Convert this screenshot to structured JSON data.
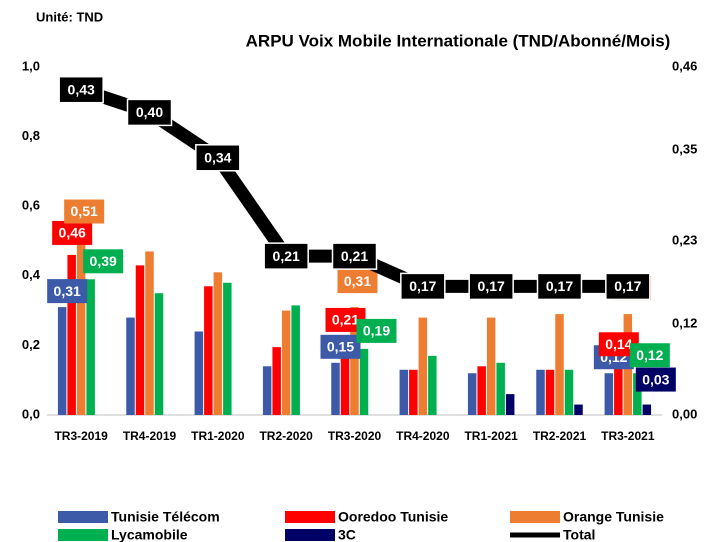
{
  "chart_data": {
    "type": "bar",
    "title": "ARPU Voix Mobile Internationale (TND/Abonné/Mois)",
    "subtitle": "Unité: TND",
    "categories": [
      "TR3-2019",
      "TR4-2019",
      "TR1-2020",
      "TR2-2020",
      "TR3-2020",
      "TR4-2020",
      "TR1-2021",
      "TR2-2021",
      "TR3-2021"
    ],
    "ylim": [
      0,
      1.0
    ],
    "yticks": [
      {
        "value": 0,
        "label": "0,0"
      },
      {
        "value": 0.2,
        "label": "0,2"
      },
      {
        "value": 0.4,
        "label": "0,4"
      },
      {
        "value": 0.6,
        "label": "0,6"
      },
      {
        "value": 0.8,
        "label": "0,8"
      },
      {
        "value": 1.0,
        "label": "1,0"
      }
    ],
    "y2lim": [
      0,
      0.46
    ],
    "y2ticks": [
      {
        "value": 0,
        "label": "0,00"
      },
      {
        "value": 0.12,
        "label": "0,12"
      },
      {
        "value": 0.23,
        "label": "0,23"
      },
      {
        "value": 0.35,
        "label": "0,35"
      },
      {
        "value": 0.46,
        "label": "0,46"
      }
    ],
    "series": [
      {
        "name": "Tunisie Télécom",
        "color": "#3c5aa8",
        "values": [
          0.31,
          0.28,
          0.24,
          0.14,
          0.15,
          0.13,
          0.12,
          0.13,
          0.12
        ],
        "value_labels": [
          "0,31",
          null,
          null,
          null,
          "0,15",
          null,
          null,
          null,
          "0,12"
        ]
      },
      {
        "name": "Ooredoo Tunisie",
        "color": "#ff0000",
        "values": [
          0.46,
          0.43,
          0.37,
          0.195,
          0.21,
          0.13,
          0.14,
          0.13,
          0.14
        ],
        "value_labels": [
          "0,46",
          null,
          null,
          null,
          "0,21",
          null,
          null,
          null,
          "0,14"
        ]
      },
      {
        "name": "Orange Tunisie",
        "color": "#ed7d31",
        "values": [
          0.51,
          0.47,
          0.41,
          0.3,
          0.31,
          0.28,
          0.28,
          0.29,
          0.29
        ],
        "value_labels": [
          "0,51",
          null,
          null,
          null,
          "0,31",
          null,
          null,
          null,
          "0,29"
        ]
      },
      {
        "name": "Lycamobile",
        "color": "#00b050",
        "values": [
          0.39,
          0.35,
          0.38,
          0.315,
          0.19,
          0.17,
          0.15,
          0.13,
          0.12
        ],
        "value_labels": [
          "0,39",
          null,
          null,
          null,
          "0,19",
          null,
          null,
          null,
          "0,12"
        ]
      },
      {
        "name": "3C",
        "color": "#000066",
        "values": [
          null,
          null,
          null,
          null,
          null,
          null,
          0.06,
          0.03,
          0.03
        ],
        "value_labels": [
          null,
          null,
          null,
          null,
          null,
          null,
          null,
          null,
          "0,03"
        ]
      },
      {
        "name": "Total",
        "color": "#000000",
        "type": "line",
        "axis": "y2",
        "values": [
          0.43,
          0.4,
          0.34,
          0.21,
          0.21,
          0.17,
          0.17,
          0.17,
          0.17
        ],
        "value_labels": [
          "0,43",
          "0,40",
          "0,34",
          "0,21",
          "0,21",
          "0,17",
          "0,17",
          "0,17",
          "0,17"
        ]
      }
    ]
  }
}
